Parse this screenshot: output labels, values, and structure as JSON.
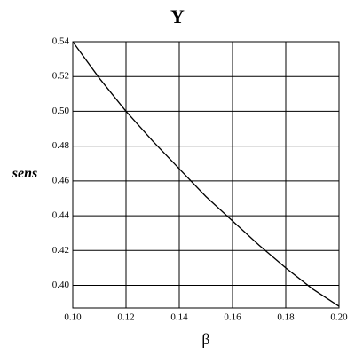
{
  "chart_data": {
    "type": "line",
    "title": "Y",
    "xlabel": "β",
    "ylabel": "sens",
    "x": [
      0.1,
      0.11,
      0.12,
      0.13,
      0.14,
      0.15,
      0.16,
      0.17,
      0.18,
      0.19,
      0.2
    ],
    "series": [
      {
        "color": "#000000",
        "values": [
          0.54,
          0.519,
          0.5,
          0.483,
          0.467,
          0.451,
          0.437,
          0.423,
          0.41,
          0.398,
          0.388
        ]
      }
    ],
    "xlim": [
      0.1,
      0.2
    ],
    "xticks": [
      {
        "value": 0.1,
        "label": "0.10"
      },
      0.12,
      0.14,
      0.16,
      0.18,
      {
        "value": 0.2,
        "label": "0.20"
      }
    ],
    "ylim": [
      0.387,
      0.54
    ],
    "yticks": [
      {
        "value": 0.4,
        "label": "0.40"
      },
      0.42,
      0.44,
      0.46,
      0.48,
      {
        "value": 0.5,
        "label": "0.50"
      },
      0.52,
      0.54
    ],
    "grid": true
  }
}
